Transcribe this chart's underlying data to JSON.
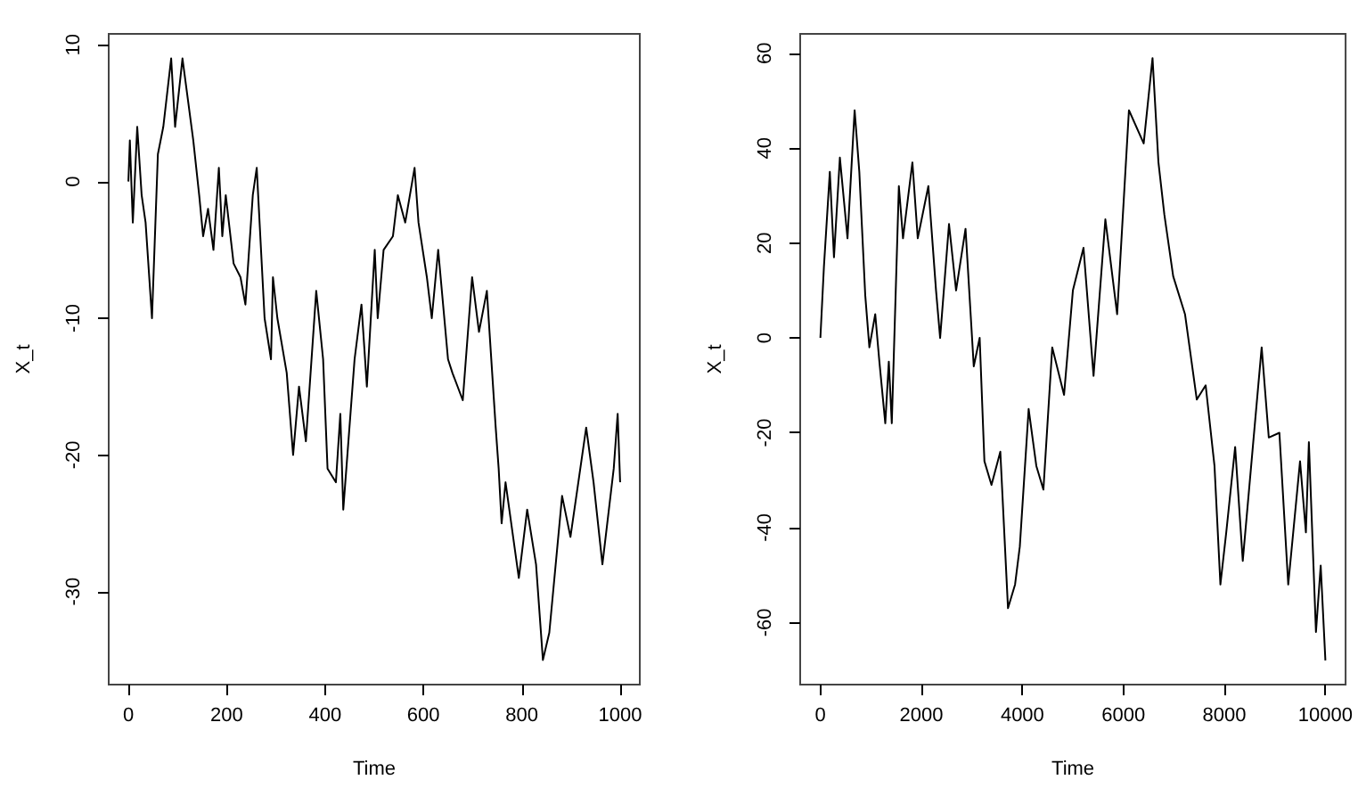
{
  "chart_data": [
    {
      "type": "line",
      "xlabel": "Time",
      "ylabel": "X_t",
      "color": "#000000",
      "marker": "none",
      "line_style": "solid",
      "x": [
        0,
        3,
        9,
        18,
        27,
        35,
        48,
        60,
        71,
        87,
        95,
        110,
        132,
        144,
        152,
        162,
        173,
        184,
        191,
        198,
        214,
        228,
        238,
        253,
        261,
        277,
        290,
        294,
        303,
        322,
        335,
        347,
        361,
        382,
        396,
        405,
        422,
        431,
        437,
        460,
        474,
        485,
        501,
        507,
        519,
        538,
        548,
        563,
        582,
        590,
        607,
        617,
        630,
        650,
        659,
        680,
        699,
        713,
        729,
        747,
        753,
        759,
        767,
        794,
        811,
        829,
        843,
        856,
        882,
        899,
        915,
        931,
        946,
        964,
        987,
        995,
        1000
      ],
      "values": [
        0,
        3,
        -3,
        4,
        -1,
        -3,
        -10,
        2,
        4,
        9,
        4,
        9,
        3,
        -1,
        -4,
        -2,
        -5,
        1,
        -4,
        -1,
        -6,
        -7,
        -9,
        -1,
        1,
        -10,
        -13,
        -7,
        -10,
        -14,
        -20,
        -15,
        -19,
        -8,
        -13,
        -21,
        -22,
        -17,
        -24,
        -13,
        -9,
        -15,
        -5,
        -10,
        -5,
        -4,
        -1,
        -3,
        1,
        -3,
        -7,
        -10,
        -5,
        -13,
        -14,
        -16,
        -7,
        -11,
        -8,
        -18,
        -21,
        -25,
        -22,
        -29,
        -24,
        -28,
        -35,
        -33,
        -23,
        -26,
        -22,
        -18,
        -22,
        -28,
        -21,
        -17,
        -22
      ],
      "xlim": [
        -40,
        1040
      ],
      "ylim": [
        -36.8,
        10.8
      ],
      "xticks": [
        0,
        200,
        400,
        600,
        800,
        1000
      ],
      "yticks": [
        -30,
        -20,
        -10,
        0,
        10
      ]
    },
    {
      "type": "line",
      "xlabel": "Time",
      "ylabel": "X_t",
      "color": "#000000",
      "marker": "none",
      "line_style": "solid",
      "x": [
        0,
        70,
        187,
        269,
        386,
        537,
        678,
        771,
        888,
        970,
        1086,
        1168,
        1285,
        1355,
        1414,
        1554,
        1636,
        1822,
        1928,
        2138,
        2290,
        2371,
        2547,
        2687,
        2874,
        3037,
        3154,
        3248,
        3388,
        3563,
        3715,
        3855,
        3949,
        4124,
        4276,
        4416,
        4591,
        4825,
        5000,
        5210,
        5409,
        5643,
        5876,
        6110,
        6402,
        6577,
        6694,
        6811,
        6986,
        7220,
        7453,
        7629,
        7804,
        7921,
        8037,
        8213,
        8364,
        8563,
        8738,
        8879,
        9089,
        9264,
        9498,
        9614,
        9673,
        9813,
        9907,
        10000
      ],
      "values": [
        0,
        15,
        35,
        17,
        38,
        21,
        48,
        35,
        9,
        -2,
        5,
        -5,
        -18,
        -5,
        -18,
        32,
        21,
        37,
        21,
        32,
        10,
        0,
        24,
        10,
        23,
        -6,
        0,
        -26,
        -31,
        -24,
        -57,
        -52,
        -44,
        -15,
        -27,
        -32,
        -2,
        -12,
        10,
        19,
        -8,
        25,
        5,
        48,
        41,
        59,
        37,
        26,
        13,
        5,
        -13,
        -10,
        -27,
        -52,
        -41,
        -23,
        -47,
        -23,
        -2,
        -21,
        -20,
        -52,
        -26,
        -41,
        -22,
        -62,
        -48,
        -68
      ],
      "xlim": [
        -400,
        10400
      ],
      "ylim": [
        -73.1,
        64.1
      ],
      "xticks": [
        0,
        2000,
        4000,
        6000,
        8000,
        10000
      ],
      "yticks": [
        -60,
        -40,
        -20,
        0,
        20,
        40,
        60
      ]
    }
  ]
}
